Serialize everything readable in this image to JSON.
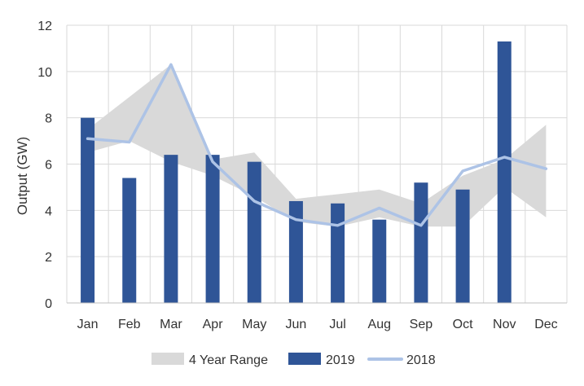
{
  "chart_data": {
    "type": "bar",
    "title": "",
    "xlabel": "",
    "ylabel": "Output (GW)",
    "ylim": [
      0,
      12
    ],
    "yticks": [
      0,
      2,
      4,
      6,
      8,
      10,
      12
    ],
    "grid": "on",
    "legend_position": "bottom",
    "categories": [
      "Jan",
      "Feb",
      "Mar",
      "Apr",
      "May",
      "Jun",
      "Jul",
      "Aug",
      "Sep",
      "Oct",
      "Nov",
      "Dec"
    ],
    "range_series": {
      "name": "4 Year Range",
      "color": "#d9d9d9",
      "low": [
        6.5,
        7.0,
        6.1,
        5.5,
        4.6,
        3.5,
        3.3,
        3.7,
        3.3,
        3.3,
        5.0,
        3.7
      ],
      "high": [
        7.5,
        8.9,
        10.3,
        6.2,
        6.5,
        4.5,
        4.7,
        4.9,
        4.3,
        5.5,
        6.2,
        7.7
      ]
    },
    "series": [
      {
        "name": "2019",
        "type": "bar",
        "color": "#2f5597",
        "values": [
          8.0,
          5.4,
          6.4,
          6.4,
          6.1,
          4.4,
          4.3,
          3.6,
          5.2,
          4.9,
          11.3,
          null
        ]
      },
      {
        "name": "2018",
        "type": "line",
        "color": "#adc3e6",
        "values": [
          7.1,
          6.95,
          10.3,
          6.1,
          4.4,
          3.6,
          3.35,
          4.1,
          3.35,
          5.7,
          6.3,
          5.8
        ]
      }
    ]
  }
}
